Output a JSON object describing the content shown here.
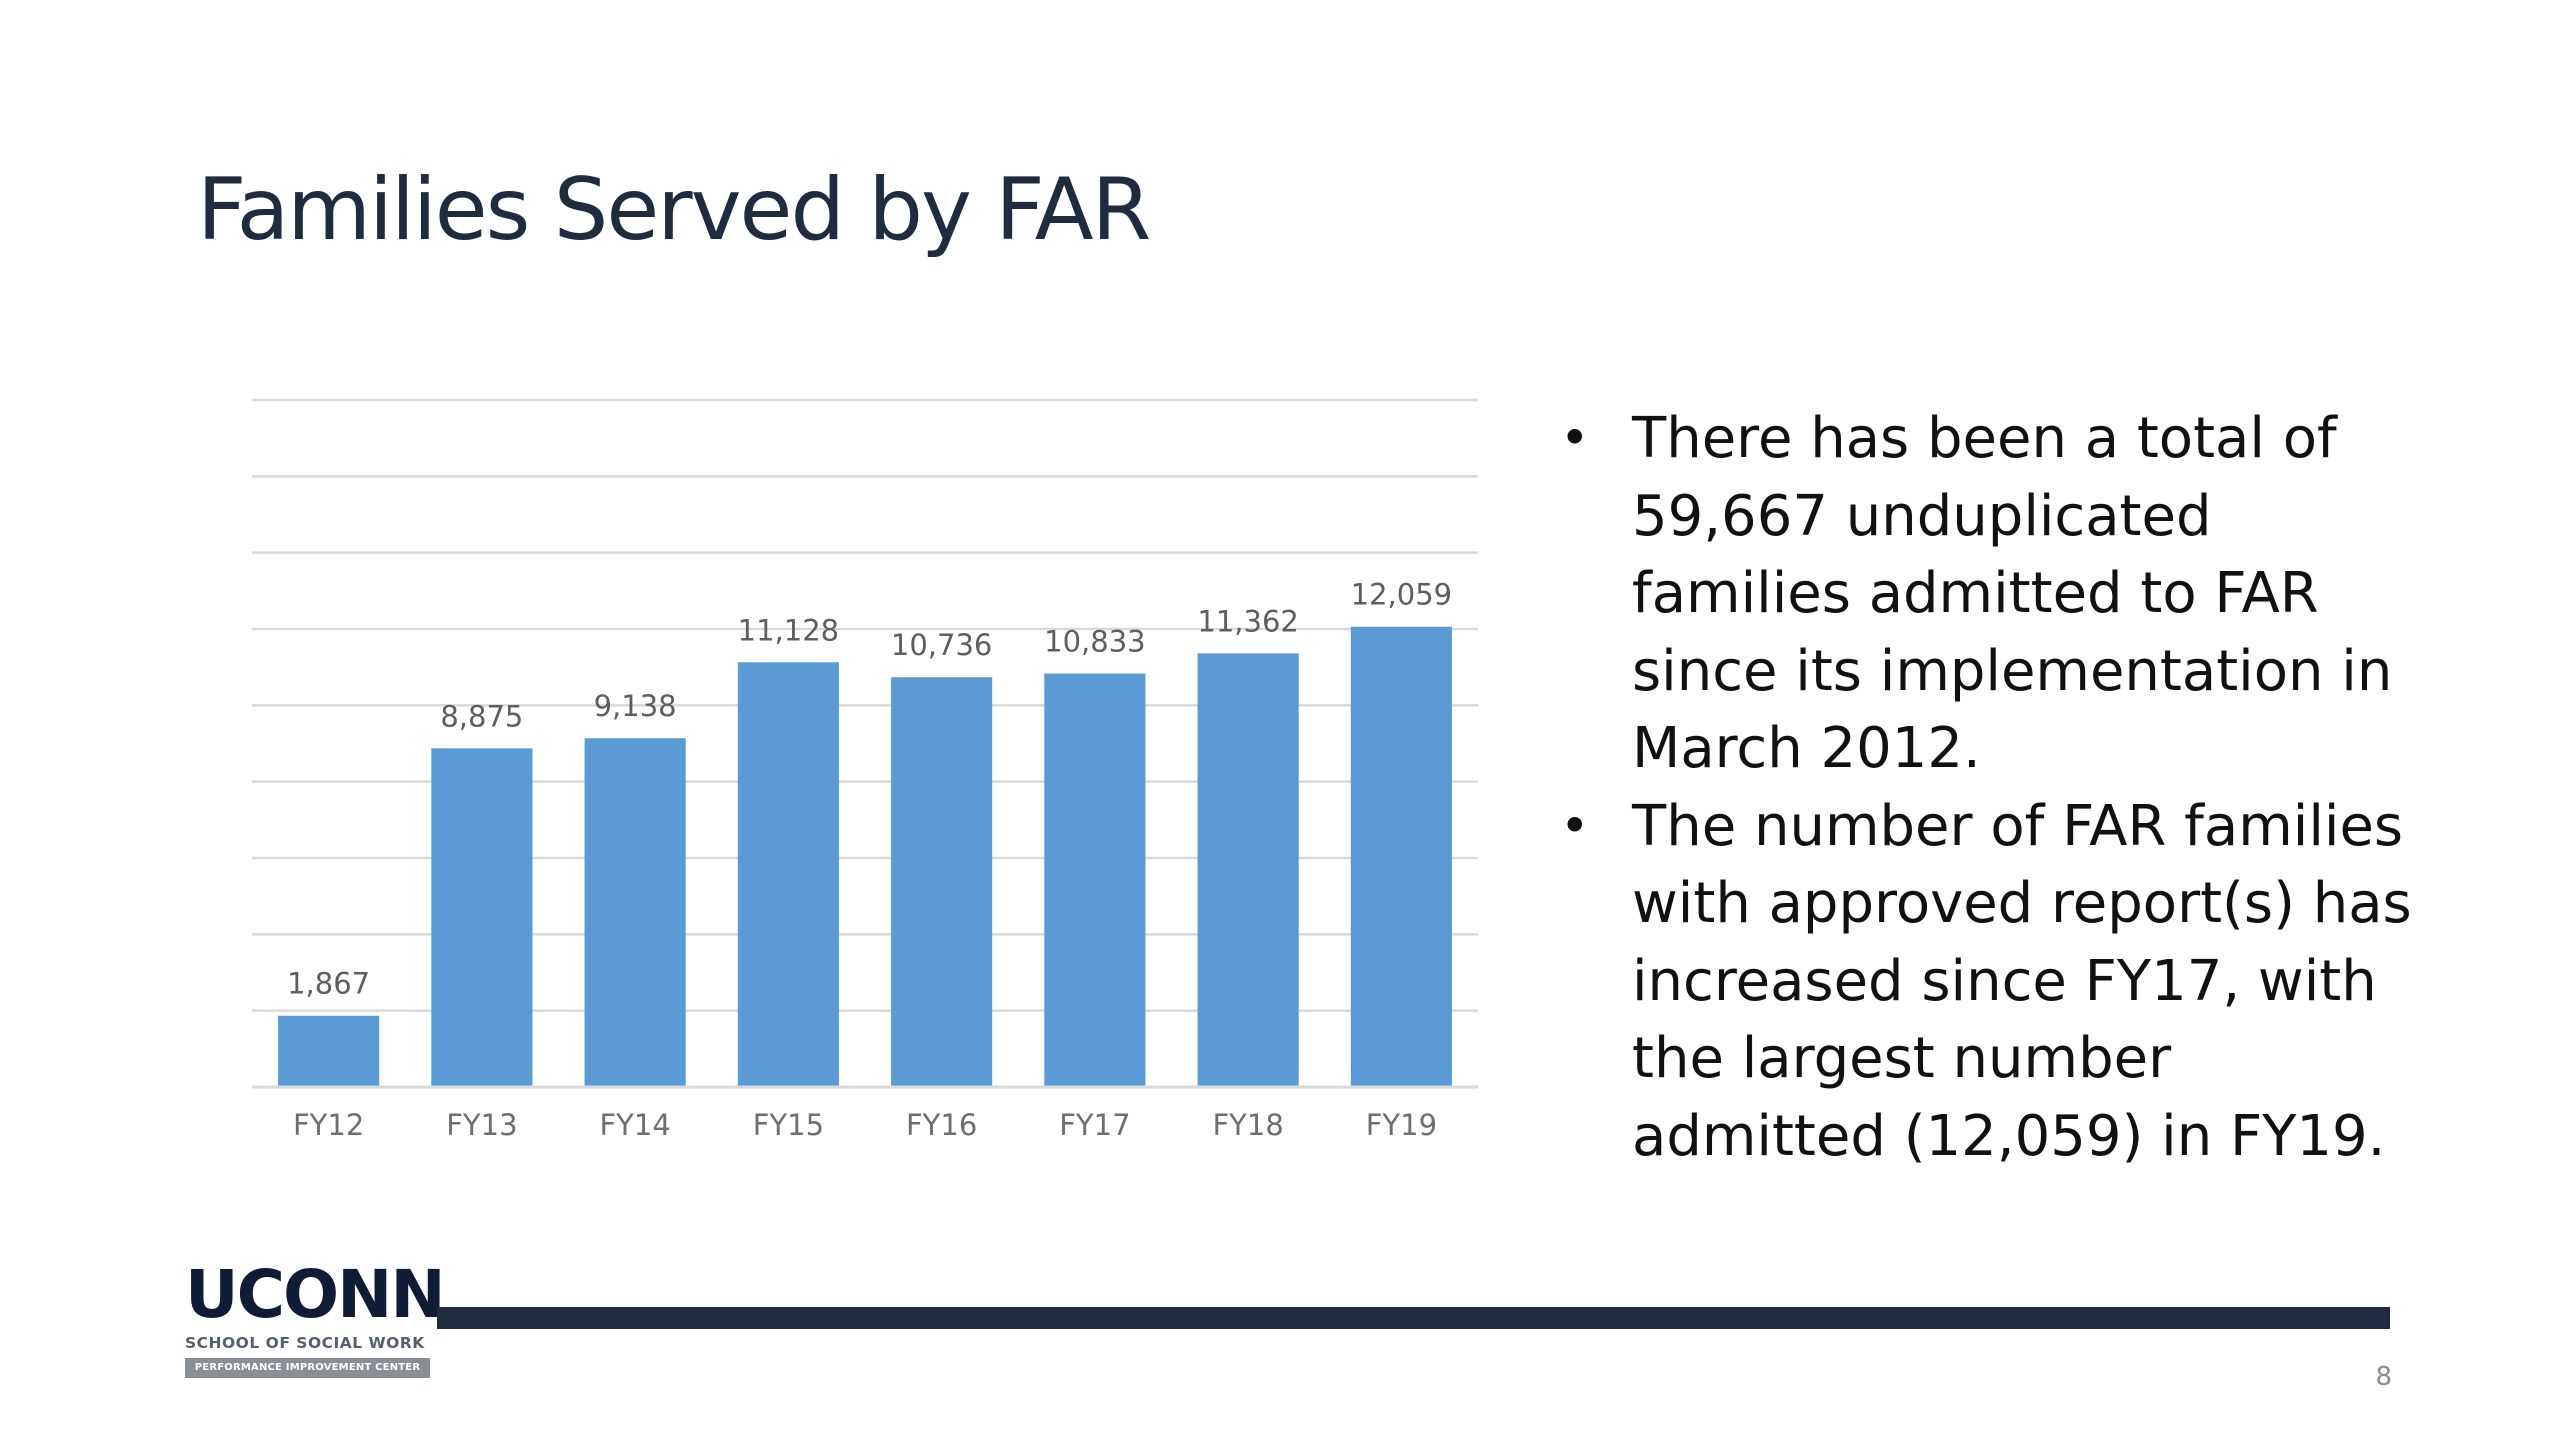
{
  "slide": {
    "title": "Families Served by FAR",
    "page_number": "8"
  },
  "bullets": [
    {
      "text": "There has been a total of 59,667  unduplicated families admitted to FAR since its implementation in March 2012."
    },
    {
      "text": "The number of FAR families with approved report(s) has increased since FY17, with the largest number admitted (12,059) in FY19."
    }
  ],
  "logo": {
    "wordmark": "UCONN",
    "school": "SCHOOL OF SOCIAL WORK",
    "center": "PERFORMANCE IMPROVEMENT CENTER"
  },
  "icons": {
    "bullet": "bullet-dot-icon"
  },
  "colors": {
    "bar": "#5b9bd5",
    "title": "#1f2b3f",
    "footer_line": "#1f2b3f",
    "gridline": "#d9d9d9"
  },
  "chart_data": {
    "type": "bar",
    "categories": [
      "FY12",
      "FY13",
      "FY14",
      "FY15",
      "FY16",
      "FY17",
      "FY18",
      "FY19"
    ],
    "values": [
      1867,
      8875,
      9138,
      11128,
      10736,
      10833,
      11362,
      12059
    ],
    "data_labels": [
      "1,867",
      "8,875",
      "9,138",
      "11,128",
      "10,736",
      "10,833",
      "11,362",
      "12,059"
    ],
    "ylim": [
      0,
      18000
    ],
    "y_gridlines": [
      2000,
      4000,
      6000,
      8000,
      10000,
      12000,
      14000,
      16000,
      18000
    ],
    "grid": true,
    "legend": "none"
  }
}
